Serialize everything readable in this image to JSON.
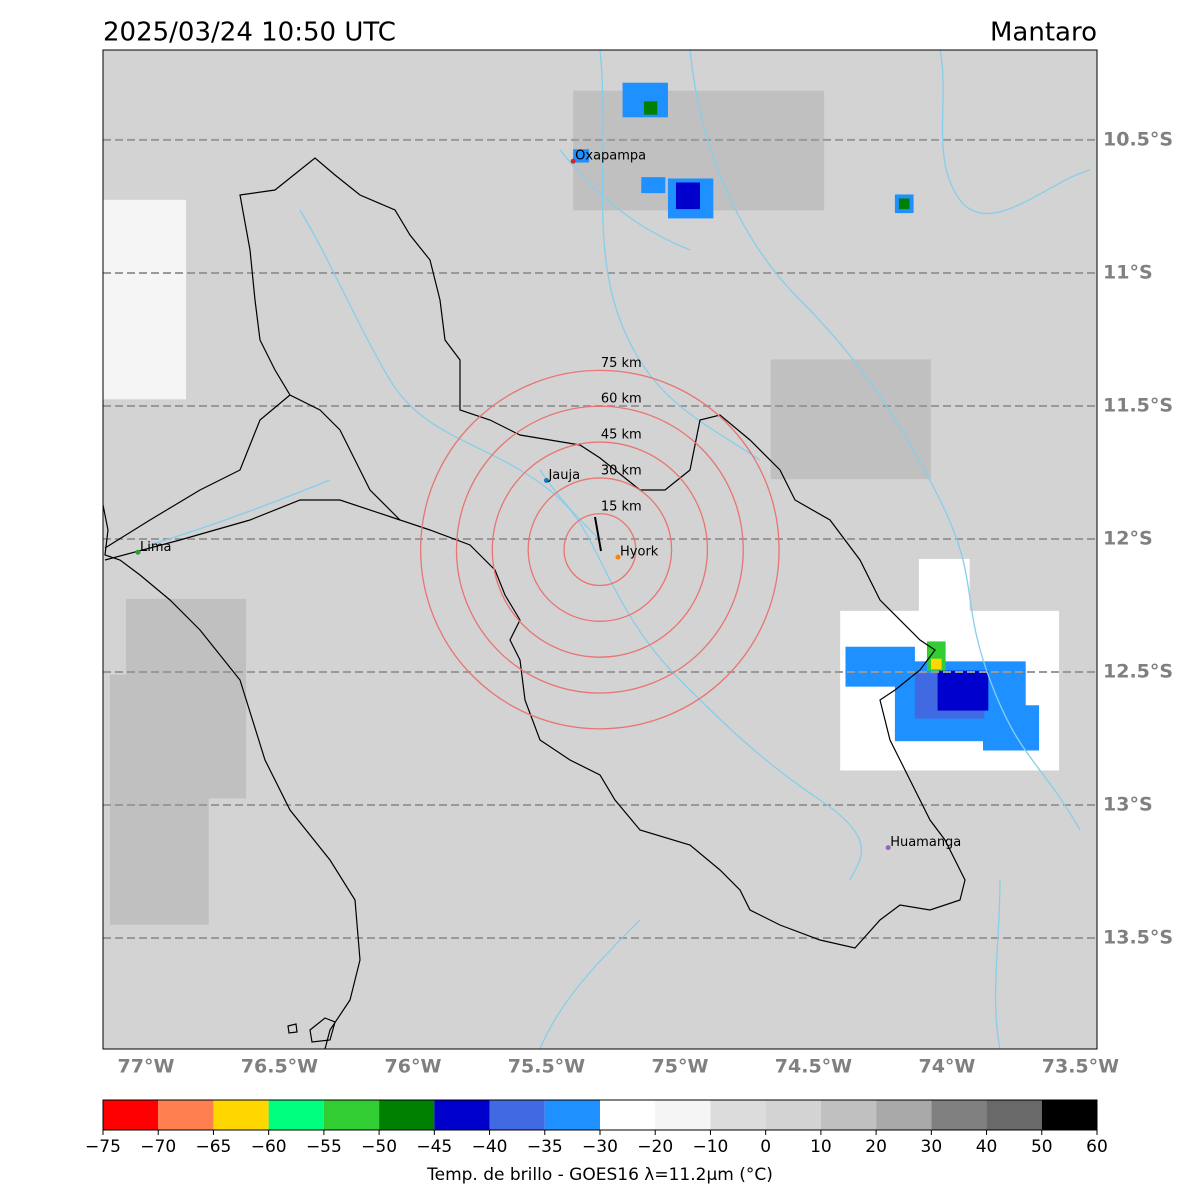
{
  "map": {
    "title": "2025/03/24 10:50 UTC",
    "region": "Mantaro",
    "lonlim": [
      -77.161,
      -73.438
    ],
    "latlim": [
      -13.917,
      -10.162
    ],
    "grid": "lat",
    "xticks": [
      {
        "value": -77,
        "label": "77°W"
      },
      {
        "value": -76.5,
        "label": "76.5°W"
      },
      {
        "value": -76,
        "label": "76°W"
      },
      {
        "value": -75.5,
        "label": "75.5°W"
      },
      {
        "value": -75,
        "label": "75°W"
      },
      {
        "value": -74.5,
        "label": "74.5°W"
      },
      {
        "value": -74,
        "label": "74°W"
      },
      {
        "value": -73.5,
        "label": "73.5°W"
      }
    ],
    "yticks": [
      {
        "value": -10.5,
        "label": "10.5°S"
      },
      {
        "value": -11,
        "label": "11°S"
      },
      {
        "value": -11.5,
        "label": "11.5°S"
      },
      {
        "value": -12,
        "label": "12°S"
      },
      {
        "value": -12.5,
        "label": "12.5°S"
      },
      {
        "value": -13,
        "label": "13°S"
      },
      {
        "value": -13.5,
        "label": "13.5°S"
      }
    ],
    "background_temp": 5,
    "cloud_cells": [
      {
        "lon": -74.93,
        "lat": -10.54,
        "w": 0.94,
        "h": 0.45,
        "temp": 15
      },
      {
        "lon": -74.36,
        "lat": -11.55,
        "w": 0.6,
        "h": 0.45,
        "temp": 15
      },
      {
        "lon": -76.95,
        "lat": -12.98,
        "w": 0.37,
        "h": 0.94,
        "temp": 15
      },
      {
        "lon": -76.85,
        "lat": -12.6,
        "w": 0.45,
        "h": 0.75,
        "temp": 15
      },
      {
        "lon": -77.02,
        "lat": -11.1,
        "w": 0.34,
        "h": 0.75,
        "temp": -15
      },
      {
        "lon": -73.99,
        "lat": -12.57,
        "w": 0.82,
        "h": 0.6,
        "temp": -25
      },
      {
        "lon": -74.01,
        "lat": -12.19,
        "w": 0.19,
        "h": 0.23,
        "temp": -25
      },
      {
        "lon": -75.13,
        "lat": -10.35,
        "w": 0.17,
        "h": 0.13,
        "temp": -35
      },
      {
        "lon": -75.11,
        "lat": -10.38,
        "w": 0.05,
        "h": 0.05,
        "temp": -50
      },
      {
        "lon": -74.96,
        "lat": -10.72,
        "w": 0.17,
        "h": 0.15,
        "temp": -35
      },
      {
        "lon": -74.97,
        "lat": -10.71,
        "w": 0.09,
        "h": 0.1,
        "temp": -45
      },
      {
        "lon": -75.1,
        "lat": -10.67,
        "w": 0.09,
        "h": 0.06,
        "temp": -35
      },
      {
        "lon": -74.16,
        "lat": -10.74,
        "w": 0.07,
        "h": 0.07,
        "temp": -35
      },
      {
        "lon": -74.16,
        "lat": -10.74,
        "w": 0.04,
        "h": 0.04,
        "temp": -50
      },
      {
        "lon": -75.37,
        "lat": -10.56,
        "w": 0.06,
        "h": 0.05,
        "temp": -35
      },
      {
        "lon": -74.25,
        "lat": -12.48,
        "w": 0.26,
        "h": 0.15,
        "temp": -35
      },
      {
        "lon": -73.95,
        "lat": -12.61,
        "w": 0.49,
        "h": 0.3,
        "temp": -35
      },
      {
        "lon": -73.76,
        "lat": -12.71,
        "w": 0.21,
        "h": 0.17,
        "temp": -35
      },
      {
        "lon": -73.99,
        "lat": -12.59,
        "w": 0.26,
        "h": 0.17,
        "temp": -40
      },
      {
        "lon": -73.94,
        "lat": -12.57,
        "w": 0.19,
        "h": 0.15,
        "temp": -45
      },
      {
        "lon": -74.04,
        "lat": -12.44,
        "w": 0.07,
        "h": 0.11,
        "temp": -55
      },
      {
        "lon": -74.04,
        "lat": -12.47,
        "w": 0.04,
        "h": 0.04,
        "temp": -65
      }
    ],
    "cities": [
      {
        "name": "Oxapampa",
        "lon": -75.4,
        "lat": -10.58,
        "color": "#d62728"
      },
      {
        "name": "Jauja",
        "lon": -75.5,
        "lat": -11.78,
        "color": "#1f77b4"
      },
      {
        "name": "Hyork",
        "lon": -75.232,
        "lat": -12.068,
        "color": "#ff7f0e"
      },
      {
        "name": "Lima",
        "lon": -77.03,
        "lat": -12.05,
        "color": "#2ca02c"
      },
      {
        "name": "Huamanga",
        "lon": -74.22,
        "lat": -13.16,
        "color": "#9467bd"
      }
    ],
    "range_rings": {
      "center": {
        "lon": -75.3,
        "lat": -12.04
      },
      "color": "#e87474",
      "rings": [
        {
          "value": 15,
          "label": "15 km"
        },
        {
          "value": 30,
          "label": "30 km"
        },
        {
          "value": 45,
          "label": "45 km"
        },
        {
          "value": 60,
          "label": "60 km"
        },
        {
          "value": 75,
          "label": "75 km"
        }
      ]
    },
    "colorbar": {
      "label": "Temp. de brillo - GOES16 λ=11.2μm (°C)",
      "boundaries": [
        -75,
        -70,
        -65,
        -60,
        -55,
        -50,
        -45,
        -40,
        -35,
        -30,
        -20,
        -10,
        0,
        10,
        20,
        30,
        40,
        50,
        60
      ],
      "colors": [
        "#ff0000",
        "#ff7f50",
        "#ffd700",
        "#00ff7f",
        "#32cd32",
        "#008000",
        "#0000cd",
        "#4169e1",
        "#1e90ff",
        "#ffffff",
        "#f5f5f5",
        "#dcdcdc",
        "#d3d3d3",
        "#c0c0c0",
        "#a9a9a9",
        "#808080",
        "#696969",
        "#000000"
      ],
      "ticks": [
        {
          "value": -75,
          "label": "−75"
        },
        {
          "value": -70,
          "label": "−70"
        },
        {
          "value": -65,
          "label": "−65"
        },
        {
          "value": -60,
          "label": "−60"
        },
        {
          "value": -55,
          "label": "−55"
        },
        {
          "value": -50,
          "label": "−50"
        },
        {
          "value": -45,
          "label": "−45"
        },
        {
          "value": -40,
          "label": "−40"
        },
        {
          "value": -35,
          "label": "−35"
        },
        {
          "value": -30,
          "label": "−30"
        },
        {
          "value": -20,
          "label": "−20"
        },
        {
          "value": -10,
          "label": "−10"
        },
        0,
        10,
        20,
        30,
        40,
        50,
        60
      ]
    }
  }
}
